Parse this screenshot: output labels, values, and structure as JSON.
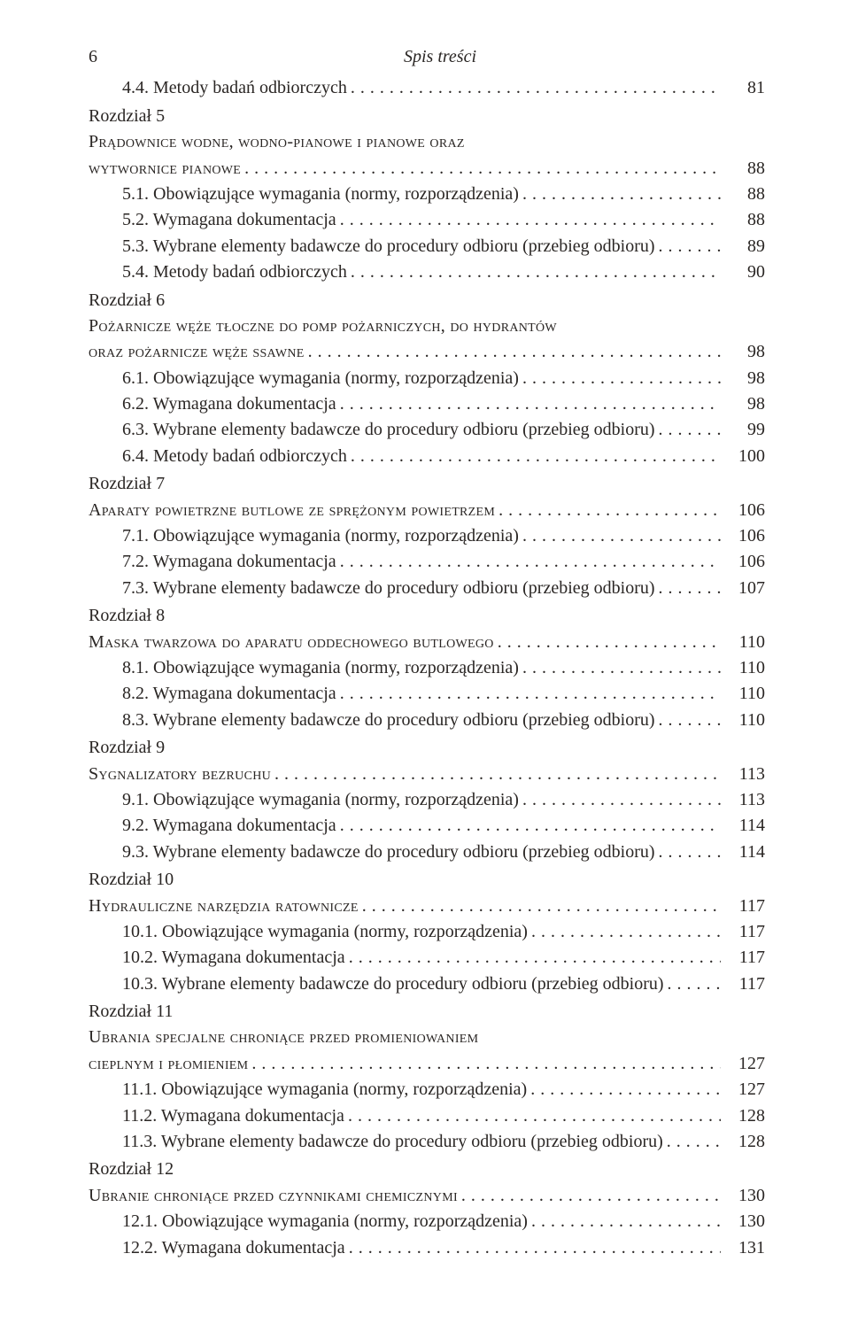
{
  "header": {
    "page_number": "6",
    "running_title": "Spis treści"
  },
  "leader_char": ".",
  "entries": [
    {
      "indent": 1,
      "text": "4.4. Metody badań odbiorczych",
      "page": "81"
    },
    {
      "indent": 0,
      "text": "Rozdział 5",
      "page": "",
      "no_leader": true,
      "chapter": true
    },
    {
      "indent": 0,
      "text": "Prądownice wodne, wodno-pianowe i pianowe oraz",
      "page": "",
      "no_leader": true,
      "smallcaps": true
    },
    {
      "indent": 0,
      "text": "wytwornice pianowe",
      "page": "88",
      "smallcaps": true
    },
    {
      "indent": 1,
      "text": "5.1. Obowiązujące wymagania (normy, rozporządzenia)",
      "page": "88"
    },
    {
      "indent": 1,
      "text": "5.2. Wymagana dokumentacja",
      "page": "88"
    },
    {
      "indent": 1,
      "text": "5.3. Wybrane elementy badawcze do procedury odbioru (przebieg odbioru)",
      "page": "89"
    },
    {
      "indent": 1,
      "text": "5.4. Metody badań odbiorczych",
      "page": "90"
    },
    {
      "indent": 0,
      "text": "Rozdział 6",
      "page": "",
      "no_leader": true,
      "chapter": true
    },
    {
      "indent": 0,
      "text": "Pożarnicze węże tłoczne do pomp pożarniczych, do hydrantów",
      "page": "",
      "no_leader": true,
      "smallcaps": true
    },
    {
      "indent": 0,
      "text": "oraz pożarnicze węże ssawne",
      "page": "98",
      "smallcaps": true
    },
    {
      "indent": 1,
      "text": "6.1. Obowiązujące wymagania (normy, rozporządzenia)",
      "page": "98"
    },
    {
      "indent": 1,
      "text": "6.2. Wymagana dokumentacja",
      "page": "98"
    },
    {
      "indent": 1,
      "text": "6.3. Wybrane elementy badawcze do procedury odbioru (przebieg odbioru)",
      "page": "99"
    },
    {
      "indent": 1,
      "text": "6.4. Metody badań odbiorczych",
      "page": "100"
    },
    {
      "indent": 0,
      "text": "Rozdział 7",
      "page": "",
      "no_leader": true,
      "chapter": true
    },
    {
      "indent": 0,
      "text": "Aparaty powietrzne butlowe ze sprężonym powietrzem",
      "page": "106",
      "smallcaps": true
    },
    {
      "indent": 1,
      "text": "7.1. Obowiązujące wymagania (normy, rozporządzenia)",
      "page": "106"
    },
    {
      "indent": 1,
      "text": "7.2. Wymagana dokumentacja",
      "page": "106"
    },
    {
      "indent": 1,
      "text": "7.3. Wybrane elementy badawcze do procedury odbioru (przebieg odbioru)",
      "page": "107"
    },
    {
      "indent": 0,
      "text": "Rozdział 8",
      "page": "",
      "no_leader": true,
      "chapter": true
    },
    {
      "indent": 0,
      "text": "Maska twarzowa do aparatu oddechowego butlowego",
      "page": "110",
      "smallcaps": true
    },
    {
      "indent": 1,
      "text": "8.1. Obowiązujące wymagania (normy, rozporządzenia)",
      "page": "110"
    },
    {
      "indent": 1,
      "text": "8.2. Wymagana dokumentacja",
      "page": "110"
    },
    {
      "indent": 1,
      "text": "8.3. Wybrane elementy badawcze do procedury odbioru (przebieg odbioru)",
      "page": "110"
    },
    {
      "indent": 0,
      "text": "Rozdział 9",
      "page": "",
      "no_leader": true,
      "chapter": true
    },
    {
      "indent": 0,
      "text": "Sygnalizatory bezruchu",
      "page": "113",
      "smallcaps": true
    },
    {
      "indent": 1,
      "text": "9.1. Obowiązujące wymagania (normy, rozporządzenia)",
      "page": "113"
    },
    {
      "indent": 1,
      "text": "9.2. Wymagana dokumentacja",
      "page": "114"
    },
    {
      "indent": 1,
      "text": "9.3. Wybrane elementy badawcze do procedury odbioru (przebieg odbioru)",
      "page": "114"
    },
    {
      "indent": 0,
      "text": "Rozdział 10",
      "page": "",
      "no_leader": true,
      "chapter": true
    },
    {
      "indent": 0,
      "text": "Hydrauliczne narzędzia ratownicze",
      "page": "117",
      "smallcaps": true
    },
    {
      "indent": 1,
      "text": "10.1. Obowiązujące wymagania (normy, rozporządzenia)",
      "page": "117"
    },
    {
      "indent": 1,
      "text": "10.2. Wymagana dokumentacja",
      "page": "117"
    },
    {
      "indent": 1,
      "text": "10.3. Wybrane elementy badawcze do procedury odbioru (przebieg odbioru)",
      "page": "117"
    },
    {
      "indent": 0,
      "text": "Rozdział 11",
      "page": "",
      "no_leader": true,
      "chapter": true
    },
    {
      "indent": 0,
      "text": "Ubrania specjalne chroniące przed promieniowaniem",
      "page": "",
      "no_leader": true,
      "smallcaps": true
    },
    {
      "indent": 0,
      "text": "cieplnym i płomieniem",
      "page": "127",
      "smallcaps": true
    },
    {
      "indent": 1,
      "text": "11.1. Obowiązujące wymagania (normy, rozporządzenia)",
      "page": "127"
    },
    {
      "indent": 1,
      "text": "11.2. Wymagana dokumentacja",
      "page": "128"
    },
    {
      "indent": 1,
      "text": "11.3. Wybrane elementy badawcze do procedury odbioru (przebieg odbioru)",
      "page": "128"
    },
    {
      "indent": 0,
      "text": "Rozdział 12",
      "page": "",
      "no_leader": true,
      "chapter": true
    },
    {
      "indent": 0,
      "text": "Ubranie chroniące przed czynnikami chemicznymi",
      "page": "130",
      "smallcaps": true
    },
    {
      "indent": 1,
      "text": "12.1. Obowiązujące wymagania (normy, rozporządzenia)",
      "page": "130"
    },
    {
      "indent": 1,
      "text": "12.2. Wymagana dokumentacja",
      "page": "131"
    }
  ]
}
